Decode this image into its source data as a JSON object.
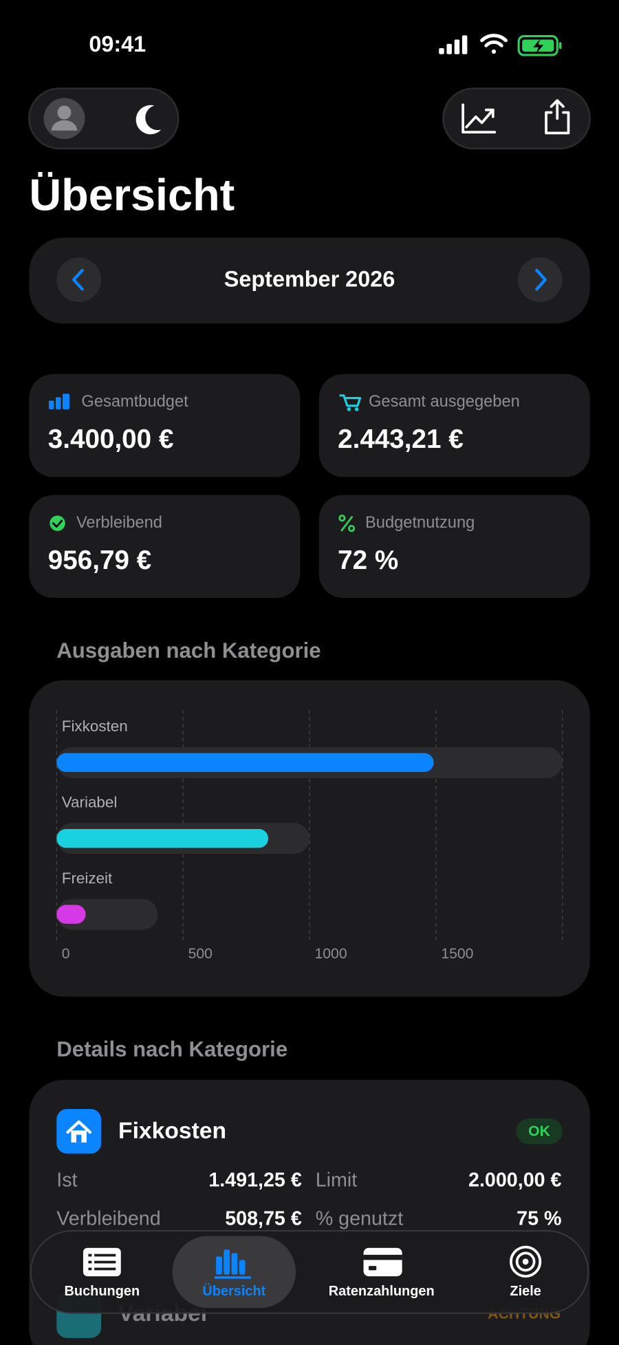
{
  "status_bar": {
    "time": "09:41"
  },
  "header": {
    "title": "Übersicht"
  },
  "month_selector": {
    "label": "September 2026"
  },
  "summary_cards": [
    {
      "label": "Gesamtbudget",
      "value": "3.400,00 €"
    },
    {
      "label": "Gesamt ausgegeben",
      "value": "2.443,21 €"
    },
    {
      "label": "Verbleibend",
      "value": "956,79 €"
    },
    {
      "label": "Budgetnutzung",
      "value": "72 %"
    }
  ],
  "chart_section": {
    "heading": "Ausgaben nach Kategorie"
  },
  "chart_data": {
    "type": "bar",
    "orientation": "horizontal",
    "categories": [
      "Fixkosten",
      "Variabel",
      "Freizeit"
    ],
    "values": [
      1491.25,
      837,
      115
    ],
    "limits": [
      2000,
      1000,
      400
    ],
    "colors": [
      "#0a84ff",
      "#1ad1e0",
      "#d63ae6"
    ],
    "track_color": "#2c2c2e",
    "xlim": [
      0,
      2000
    ],
    "xticks": [
      0,
      500,
      1000,
      1500
    ],
    "grid": true
  },
  "details": {
    "heading": "Details nach Kategorie",
    "items": [
      {
        "name": "Fixkosten",
        "status": "OK",
        "ist_label": "Ist",
        "ist": "1.491,25 €",
        "limit_label": "Limit",
        "limit": "2.000,00 €",
        "remaining_label": "Verbleibend",
        "remaining": "508,75 €",
        "used_label": "% genutzt",
        "used": "75 %"
      },
      {
        "name": "Variabel",
        "status": "ACHTUNG"
      }
    ]
  },
  "tab_bar": {
    "tabs": [
      "Buchungen",
      "Übersicht",
      "Ratenzahlungen",
      "Ziele"
    ]
  }
}
